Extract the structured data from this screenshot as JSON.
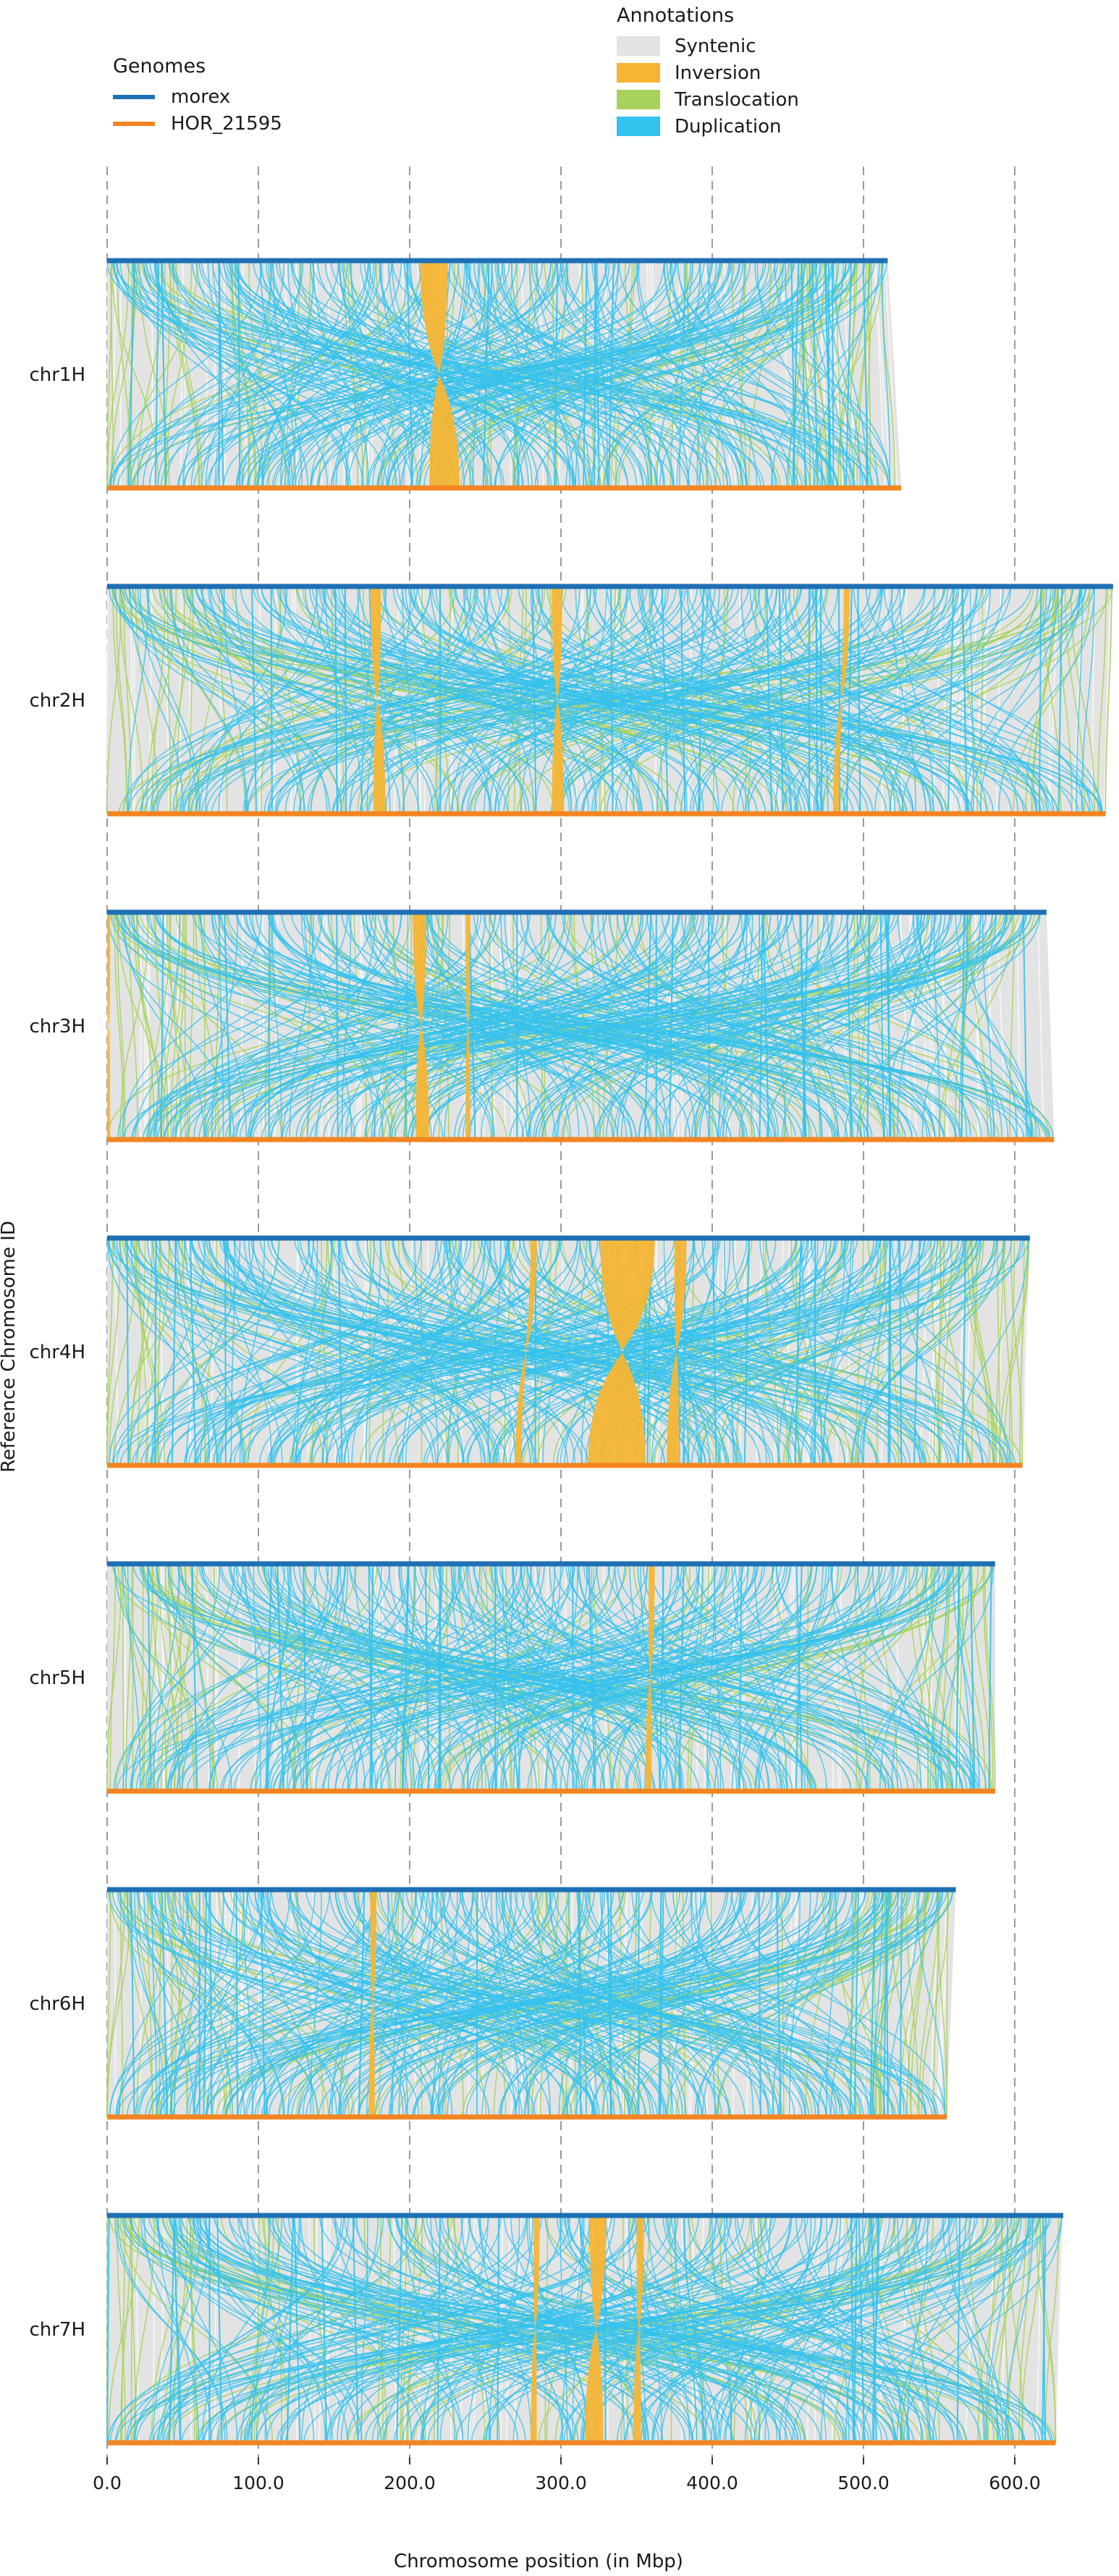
{
  "chart_data": {
    "type": "synteny",
    "xlabel": "Chromosome position (in Mbp)",
    "ylabel": "Reference Chromosome ID",
    "xlim": [
      0,
      670
    ],
    "xticks": [
      0,
      100,
      200,
      300,
      400,
      500,
      600
    ],
    "xtick_labels": [
      "0.0",
      "100.0",
      "200.0",
      "300.0",
      "400.0",
      "500.0",
      "600.0"
    ],
    "grid": "vertical dashed",
    "genomes": {
      "title": "Genomes",
      "items": [
        {
          "name": "morex",
          "color": "#1f6fb4"
        },
        {
          "name": "HOR_21595",
          "color": "#f28522"
        }
      ]
    },
    "annotations": {
      "title": "Annotations",
      "items": [
        {
          "name": "Syntenic",
          "color": "#e3e3e3"
        },
        {
          "name": "Inversion",
          "color": "#f7b534"
        },
        {
          "name": "Translocation",
          "color": "#a9d25c"
        },
        {
          "name": "Duplication",
          "color": "#34c2ee"
        }
      ]
    },
    "chromosomes": [
      {
        "id": "chr1H",
        "ref_length": 516,
        "qry_length": 525,
        "inversions": [
          {
            "ref": [
              207,
              225
            ],
            "qry": [
              213,
              233
            ]
          }
        ]
      },
      {
        "id": "chr2H",
        "ref_length": 665,
        "qry_length": 660,
        "inversions": [
          {
            "ref": [
              174,
              181
            ],
            "qry": [
              176,
              184
            ]
          },
          {
            "ref": [
              294,
              301
            ],
            "qry": [
              294,
              302
            ]
          },
          {
            "ref": [
              487,
              491
            ],
            "qry": [
              480,
              484
            ]
          }
        ]
      },
      {
        "id": "chr3H",
        "ref_length": 621,
        "qry_length": 626,
        "inversions": [
          {
            "ref": [
              202,
              211
            ],
            "qry": [
              204,
              213
            ]
          },
          {
            "ref": [
              237,
              240
            ],
            "qry": [
              237,
              240
            ]
          },
          {
            "ref": [
              0,
              2
            ],
            "qry": [
              0,
              2
            ]
          }
        ]
      },
      {
        "id": "chr4H",
        "ref_length": 610,
        "qry_length": 605,
        "inversions": [
          {
            "ref": [
              326,
              362
            ],
            "qry": [
              318,
              356
            ]
          },
          {
            "ref": [
              280,
              284
            ],
            "qry": [
              270,
              274
            ]
          },
          {
            "ref": [
              375,
              383
            ],
            "qry": [
              370,
              378
            ]
          }
        ]
      },
      {
        "id": "chr5H",
        "ref_length": 587,
        "qry_length": 587,
        "inversions": [
          {
            "ref": [
              358,
              362
            ],
            "qry": [
              356,
              360
            ]
          }
        ]
      },
      {
        "id": "chr6H",
        "ref_length": 561,
        "qry_length": 555,
        "inversions": [
          {
            "ref": [
              174,
              178
            ],
            "qry": [
              173,
              177
            ]
          }
        ]
      },
      {
        "id": "chr7H",
        "ref_length": 632,
        "qry_length": 627,
        "inversions": [
          {
            "ref": [
              319,
              330
            ],
            "qry": [
              316,
              328
            ]
          },
          {
            "ref": [
              350,
              355
            ],
            "qry": [
              348,
              353
            ]
          },
          {
            "ref": [
              282,
              286
            ],
            "qry": [
              280,
              284
            ]
          }
        ]
      }
    ]
  }
}
